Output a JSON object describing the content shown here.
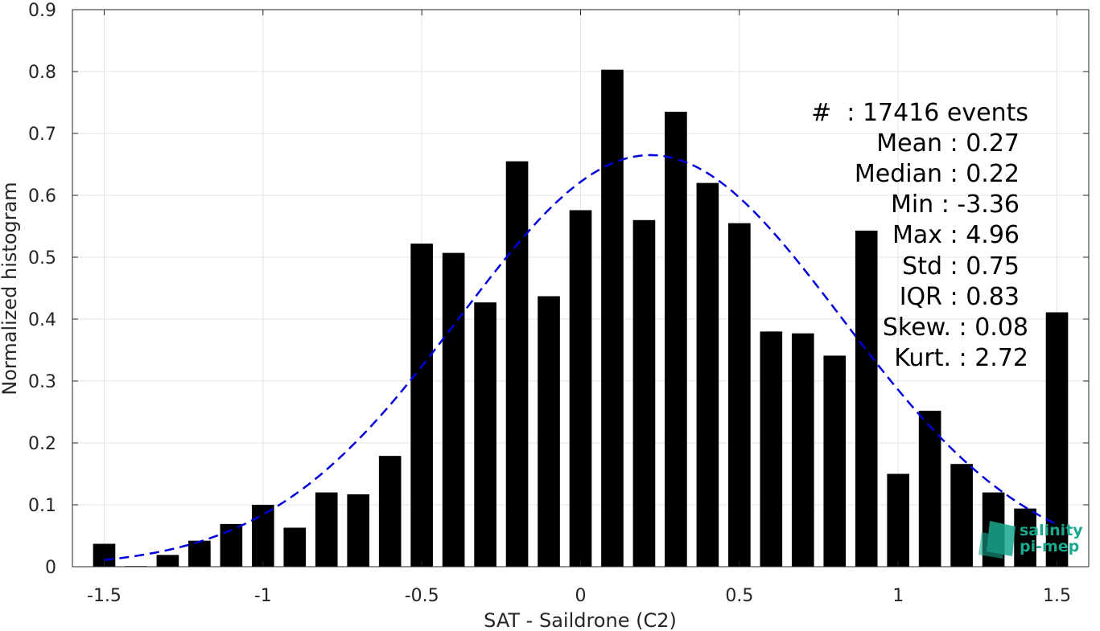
{
  "chart_data": {
    "type": "bar",
    "xlabel": "SAT - Saildrone (C2)",
    "ylabel": "Normalized histogram",
    "xlim": [
      -1.6,
      1.6
    ],
    "ylim": [
      0,
      0.9
    ],
    "xticks": [
      -1.5,
      -1,
      -0.5,
      0,
      0.5,
      1,
      1.5
    ],
    "xtick_labels": [
      "-1.5",
      "-1",
      "-0.5",
      "0",
      "0.5",
      "1",
      "1.5"
    ],
    "yticks": [
      0,
      0.1,
      0.2,
      0.3,
      0.4,
      0.5,
      0.6,
      0.7,
      0.8,
      0.9
    ],
    "ytick_labels": [
      "0",
      "0.1",
      "0.2",
      "0.3",
      "0.4",
      "0.5",
      "0.6",
      "0.7",
      "0.8",
      "0.9"
    ],
    "grid": true,
    "bar_width": 0.07,
    "bar_color": "#000000",
    "bars": [
      {
        "x": -1.5,
        "y": 0.037
      },
      {
        "x": -1.4,
        "y": 0.001
      },
      {
        "x": -1.3,
        "y": 0.019
      },
      {
        "x": -1.2,
        "y": 0.042
      },
      {
        "x": -1.1,
        "y": 0.069
      },
      {
        "x": -1.0,
        "y": 0.1
      },
      {
        "x": -0.9,
        "y": 0.063
      },
      {
        "x": -0.8,
        "y": 0.12
      },
      {
        "x": -0.7,
        "y": 0.117
      },
      {
        "x": -0.6,
        "y": 0.179
      },
      {
        "x": -0.5,
        "y": 0.522
      },
      {
        "x": -0.4,
        "y": 0.507
      },
      {
        "x": -0.3,
        "y": 0.427
      },
      {
        "x": -0.2,
        "y": 0.655
      },
      {
        "x": -0.1,
        "y": 0.437
      },
      {
        "x": 0.0,
        "y": 0.576
      },
      {
        "x": 0.1,
        "y": 0.803
      },
      {
        "x": 0.2,
        "y": 0.56
      },
      {
        "x": 0.3,
        "y": 0.735
      },
      {
        "x": 0.4,
        "y": 0.62
      },
      {
        "x": 0.5,
        "y": 0.555
      },
      {
        "x": 0.6,
        "y": 0.38
      },
      {
        "x": 0.7,
        "y": 0.377
      },
      {
        "x": 0.8,
        "y": 0.341
      },
      {
        "x": 0.9,
        "y": 0.543
      },
      {
        "x": 1.0,
        "y": 0.15
      },
      {
        "x": 1.1,
        "y": 0.252
      },
      {
        "x": 1.2,
        "y": 0.166
      },
      {
        "x": 1.3,
        "y": 0.12
      },
      {
        "x": 1.4,
        "y": 0.094
      },
      {
        "x": 1.5,
        "y": 0.411
      }
    ],
    "fit_curve": {
      "style": "dashed",
      "color": "#0000dd",
      "mean": 0.22,
      "std": 0.6,
      "peak": 0.665,
      "x_range": [
        -1.5,
        1.5
      ]
    },
    "stats": [
      "#  : 17416 events",
      "Mean : 0.27",
      "Median : 0.22",
      "Min : -3.36",
      "Max : 4.96",
      "Std : 0.75",
      "IQR : 0.83",
      "Skew. : 0.08",
      "Kurt. : 2.72"
    ]
  },
  "logo": {
    "line1": "salinity",
    "line2": "pi-mep",
    "color": "#1aa88f"
  }
}
